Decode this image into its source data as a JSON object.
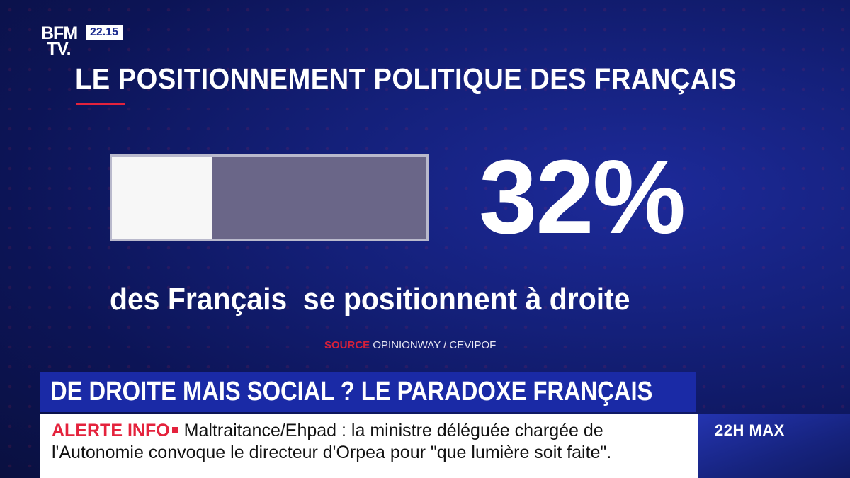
{
  "channel": {
    "logo": [
      "BFM",
      "TV."
    ],
    "time": "22.15"
  },
  "graphic": {
    "title": "LE POSITIONNEMENT POLITIQUE DES FRANÇAIS",
    "progress_fraction": 0.32,
    "percentage_text": "32%",
    "subtitle": "des Français  se positionnent à droite",
    "source_label": "SOURCE",
    "source_text": "OPINIONWAY / CEVIPOF"
  },
  "headline": "DE DROITE MAIS SOCIAL ? LE PARADOXE FRANÇAIS",
  "ticker": {
    "label": "ALERTE INFO",
    "text": "Maltraitance/Ehpad : la ministre déléguée chargée de l'Autonomie convoque le directeur d'Orpea pour \"que lumière soit faite\"."
  },
  "show": "22H MAX",
  "colors": {
    "accent_red": "#e4223c",
    "brand_blue": "#1a2aa6",
    "bar_fill": "#f7f7f7",
    "bar_empty": "#6a6688"
  }
}
